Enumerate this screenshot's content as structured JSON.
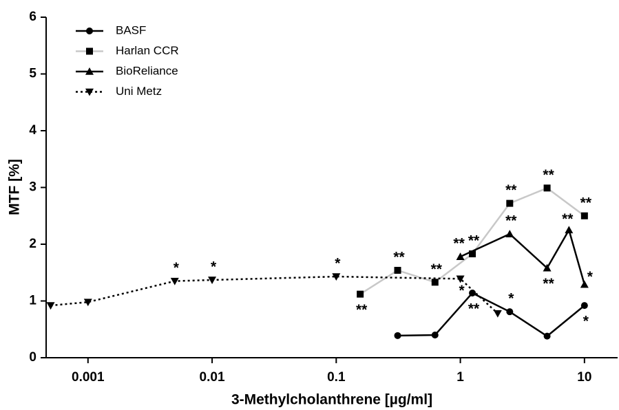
{
  "chart_data": {
    "type": "line",
    "x_label": "3-Methylcholanthrene [µg/ml]",
    "y_label": "MTF [%]",
    "xscale": "log",
    "xlim": [
      0.00046,
      18.5
    ],
    "ylim": [
      0,
      6
    ],
    "xticks": [
      0.001,
      0.01,
      0.1,
      1,
      10
    ],
    "yticks": [
      0,
      1,
      2,
      3,
      4,
      5,
      6
    ],
    "legend": "upper left",
    "series": [
      {
        "name": "BASF",
        "color": "#000000",
        "marker": "circle",
        "line_style": "solid",
        "x": [
          0.3125,
          0.625,
          1.25,
          2.5,
          5,
          10
        ],
        "values": [
          0.39,
          0.4,
          1.14,
          0.81,
          0.38,
          0.92
        ],
        "annotations": [
          null,
          null,
          "**",
          "*",
          null,
          "*"
        ]
      },
      {
        "name": "Harlan CCR",
        "color": "#c8c8c8",
        "marker": "square",
        "line_style": "solid",
        "x": [
          0.156,
          0.3125,
          0.625,
          1.25,
          2.5,
          5,
          10
        ],
        "values": [
          1.12,
          1.54,
          1.33,
          1.83,
          2.72,
          2.99,
          2.5
        ],
        "annotations": [
          "**",
          "**",
          "**",
          "**",
          "**",
          "**",
          "**"
        ]
      },
      {
        "name": "BioReliance",
        "color": "#000000",
        "marker": "triangle",
        "line_style": "solid",
        "x": [
          1,
          2.5,
          5,
          7.5,
          10
        ],
        "values": [
          1.78,
          2.18,
          1.58,
          2.25,
          1.29
        ],
        "annotations": [
          "**",
          "**",
          "**",
          "**",
          "*"
        ]
      },
      {
        "name": "Uni Metz",
        "color": "#000000",
        "marker": "triangle-down",
        "line_style": "dotted",
        "x": [
          0.0005,
          0.001,
          0.005,
          0.01,
          0.1,
          1,
          2
        ],
        "values": [
          0.92,
          0.98,
          1.35,
          1.37,
          1.43,
          1.39,
          0.78
        ],
        "annotations": [
          null,
          null,
          "*",
          "*",
          "*",
          "*",
          null
        ]
      }
    ]
  }
}
